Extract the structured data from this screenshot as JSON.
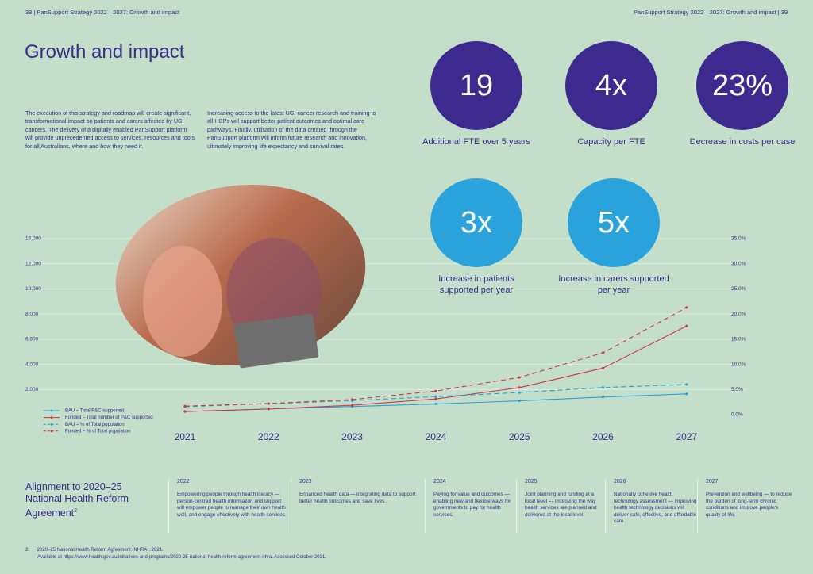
{
  "header": {
    "left": "38 | PanSupport Strategy 2022—2027: Growth and impact",
    "right": "PanSupport Strategy 2022—2027: Growth and impact | 39"
  },
  "title": "Growth and impact",
  "paragraphs": [
    "The execution of this strategy and roadmap will create significant, transformational impact on patients and carers affected by UGI cancers. The delivery of a digitally enabled PanSupport platform will provide unprecedented access to services, resources and tools for all Australians, where and how they need it.",
    "Increasing access to the latest UGI cancer research and training to all HCPs will support better patient outcomes and optimal care pathways. Finally, utilisation of the data created through the PanSupport platform will inform future research and innovation, ultimately improving life expectancy and survival rates."
  ],
  "stats": [
    {
      "value": "19",
      "label": "Additional FTE over 5 years"
    },
    {
      "value": "4x",
      "label": "Capacity per FTE"
    },
    {
      "value": "23%",
      "label": "Decrease in costs per case"
    },
    {
      "value": "3x",
      "label": "Increase in patients supported per year"
    },
    {
      "value": "5x",
      "label": "Increase in carers supported per year"
    }
  ],
  "chart_data": {
    "type": "line",
    "categories": [
      "2021",
      "2022",
      "2023",
      "2024",
      "2025",
      "2026",
      "2027"
    ],
    "series": [
      {
        "name": "BAU – Total P&C supported",
        "color": "#2a9fd6",
        "dashed": false,
        "values": [
          250,
          450,
          650,
          850,
          1100,
          1400,
          1650
        ]
      },
      {
        "name": "Funded – Total number of P&C supported",
        "color": "#d6334a",
        "dashed": false,
        "values": [
          250,
          450,
          750,
          1250,
          2150,
          3700,
          7050
        ]
      },
      {
        "name": "BAU – % of Total population",
        "color": "#2a9fd6",
        "dashed": true,
        "axis": "y2",
        "values": [
          1.6,
          2.2,
          2.8,
          3.6,
          4.4,
          5.4,
          6.0
        ]
      },
      {
        "name": "Funded – % of Total population",
        "color": "#d6334a",
        "dashed": true,
        "axis": "y2",
        "values": [
          1.7,
          2.2,
          3.0,
          4.7,
          7.4,
          12.3,
          21.3
        ]
      }
    ],
    "ylim": [
      0,
      14000
    ],
    "yticks": [
      {
        "value": 2000,
        "label": "2,000"
      },
      {
        "value": 4000,
        "label": "4,000"
      },
      {
        "value": 6000,
        "label": "6,000"
      },
      {
        "value": 8000,
        "label": "8,000"
      },
      {
        "value": 10000,
        "label": "10,000"
      },
      {
        "value": 12000,
        "label": "12,000"
      },
      {
        "value": 14000,
        "label": "14,000"
      }
    ],
    "y2lim": [
      0,
      35
    ],
    "y2ticks": [
      {
        "value": 0,
        "label": "0.0%"
      },
      {
        "value": 5,
        "label": "5.0%"
      },
      {
        "value": 10,
        "label": "10.0%"
      },
      {
        "value": 15,
        "label": "15.0%"
      },
      {
        "value": 20,
        "label": "20.0%"
      },
      {
        "value": 25,
        "label": "25.0%"
      },
      {
        "value": 30,
        "label": "30.0%"
      },
      {
        "value": 35,
        "label": "35.0%"
      }
    ],
    "grid": true,
    "legend": "lower left"
  },
  "alignment": {
    "title": "Alignment to 2020–25 National Health Reform Agreement",
    "note_mark": "2",
    "columns": [
      {
        "year": "2022",
        "text": "Empowering people through health literacy — person-centred health information and support will empower people to manage their own health well, and engage effectively with health services."
      },
      {
        "year": "2023",
        "text": "Enhanced health data — integrating data to support better health outcomes and save lives."
      },
      {
        "year": "2024",
        "text": "Paying for value and outcomes — enabling new and flexible ways for governments to pay for health services."
      },
      {
        "year": "2025",
        "text": "Joint planning and funding at a local level — improving the way health services are planned and delivered at the local level."
      },
      {
        "year": "2026",
        "text": "Nationally cohesive health technology assessment — improving health technology decisions will deliver safe, effective, and affordable care."
      },
      {
        "year": "2027",
        "text": "Prevention and wellbeing — to reduce the burden of long-term chronic conditions and improve people's quality of life."
      }
    ]
  },
  "footnote": {
    "number": "2.",
    "line1": "2020–25 National Health Reform Agreement (NHRA). 2021.",
    "line2": "Available at https://www.health.gov.au/initiatives-and-programs/2020-25-national-health-reform-agreement-nhra. Accessed October 2021."
  }
}
